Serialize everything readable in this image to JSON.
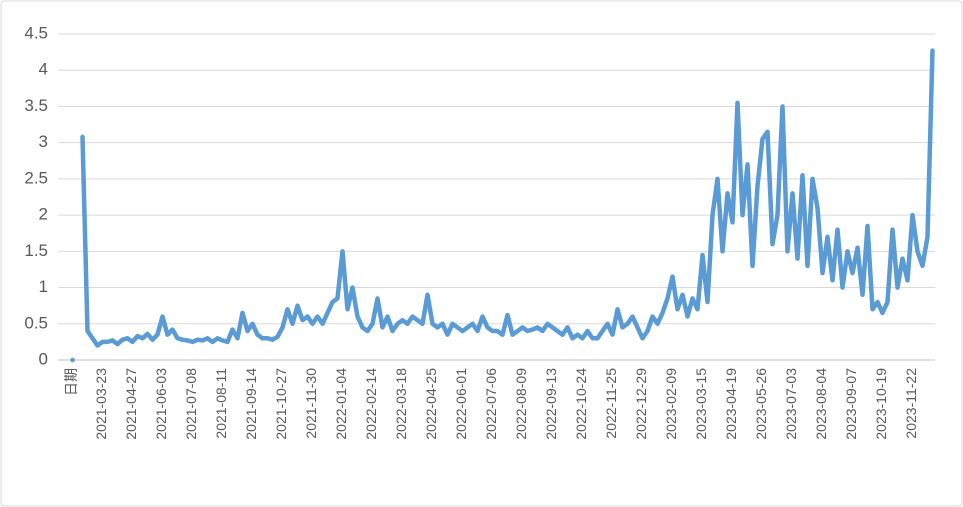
{
  "chart_data": {
    "type": "line",
    "categories": [
      "日期",
      null,
      null,
      null,
      null,
      null,
      "2021-03-23",
      null,
      null,
      null,
      null,
      null,
      "2021-04-27",
      null,
      null,
      null,
      null,
      null,
      "2021-06-03",
      null,
      null,
      null,
      null,
      null,
      "2021-07-08",
      null,
      null,
      null,
      null,
      null,
      "2021-08-11",
      null,
      null,
      null,
      null,
      null,
      "2021-09-14",
      null,
      null,
      null,
      null,
      null,
      "2021-10-27",
      null,
      null,
      null,
      null,
      null,
      "2021-11-30",
      null,
      null,
      null,
      null,
      null,
      "2022-01-04",
      null,
      null,
      null,
      null,
      null,
      "2022-02-14",
      null,
      null,
      null,
      null,
      null,
      "2022-03-18",
      null,
      null,
      null,
      null,
      null,
      "2022-04-25",
      null,
      null,
      null,
      null,
      null,
      "2022-06-01",
      null,
      null,
      null,
      null,
      null,
      "2022-07-06",
      null,
      null,
      null,
      null,
      null,
      "2022-08-09",
      null,
      null,
      null,
      null,
      null,
      "2022-09-13",
      null,
      null,
      null,
      null,
      null,
      "2022-10-24",
      null,
      null,
      null,
      null,
      null,
      "2022-11-25",
      null,
      null,
      null,
      null,
      null,
      "2022-12-29",
      null,
      null,
      null,
      null,
      null,
      "2023-02-09",
      null,
      null,
      null,
      null,
      null,
      "2023-03-15",
      null,
      null,
      null,
      null,
      null,
      "2023-04-19",
      null,
      null,
      null,
      null,
      null,
      "2023-05-26",
      null,
      null,
      null,
      null,
      null,
      "2023-07-03",
      null,
      null,
      null,
      null,
      null,
      "2023-08-04",
      null,
      null,
      null,
      null,
      null,
      "2023-09-07",
      null,
      null,
      null,
      null,
      null,
      "2023-10-19",
      null,
      null,
      null,
      null,
      null,
      "2023-11-22",
      null,
      null,
      null,
      null
    ],
    "series": [
      {
        "color": "#5b9bd5",
        "values": [
          0,
          null,
          3.08,
          0.4,
          0.3,
          0.2,
          0.25,
          0.25,
          0.27,
          0.22,
          0.28,
          0.3,
          0.25,
          0.33,
          0.3,
          0.36,
          0.28,
          0.35,
          0.6,
          0.35,
          0.42,
          0.3,
          0.28,
          0.27,
          0.25,
          0.28,
          0.27,
          0.3,
          0.25,
          0.3,
          0.27,
          0.25,
          0.42,
          0.3,
          0.65,
          0.4,
          0.5,
          0.35,
          0.3,
          0.3,
          0.28,
          0.32,
          0.45,
          0.7,
          0.5,
          0.75,
          0.55,
          0.6,
          0.5,
          0.6,
          0.5,
          0.65,
          0.8,
          0.85,
          1.5,
          0.7,
          1.0,
          0.6,
          0.45,
          0.4,
          0.5,
          0.85,
          0.45,
          0.6,
          0.4,
          0.5,
          0.55,
          0.5,
          0.6,
          0.55,
          0.5,
          0.9,
          0.5,
          0.45,
          0.5,
          0.35,
          0.5,
          0.45,
          0.4,
          0.45,
          0.5,
          0.4,
          0.6,
          0.45,
          0.4,
          0.4,
          0.35,
          0.62,
          0.35,
          0.4,
          0.45,
          0.4,
          0.42,
          0.45,
          0.4,
          0.5,
          0.45,
          0.4,
          0.35,
          0.45,
          0.3,
          0.35,
          0.3,
          0.4,
          0.3,
          0.3,
          0.4,
          0.5,
          0.35,
          0.7,
          0.45,
          0.5,
          0.6,
          0.45,
          0.3,
          0.4,
          0.6,
          0.5,
          0.65,
          0.85,
          1.15,
          0.7,
          0.9,
          0.6,
          0.85,
          0.7,
          1.45,
          0.8,
          2.0,
          2.5,
          1.5,
          2.3,
          1.9,
          3.55,
          2.0,
          2.7,
          1.3,
          2.4,
          3.05,
          3.15,
          1.6,
          2.0,
          3.5,
          1.5,
          2.3,
          1.4,
          2.55,
          1.3,
          2.5,
          2.1,
          1.2,
          1.7,
          1.1,
          1.8,
          1.0,
          1.5,
          1.2,
          1.55,
          0.9,
          1.85,
          0.7,
          0.8,
          0.65,
          0.8,
          1.8,
          1.0,
          1.4,
          1.1,
          2.0,
          1.5,
          1.3,
          1.7,
          4.27
        ]
      }
    ],
    "ylim": [
      0,
      4.5
    ],
    "yticks": [
      0,
      0.5,
      1,
      1.5,
      2,
      2.5,
      3,
      3.5,
      4,
      4.5
    ],
    "grid": true
  }
}
